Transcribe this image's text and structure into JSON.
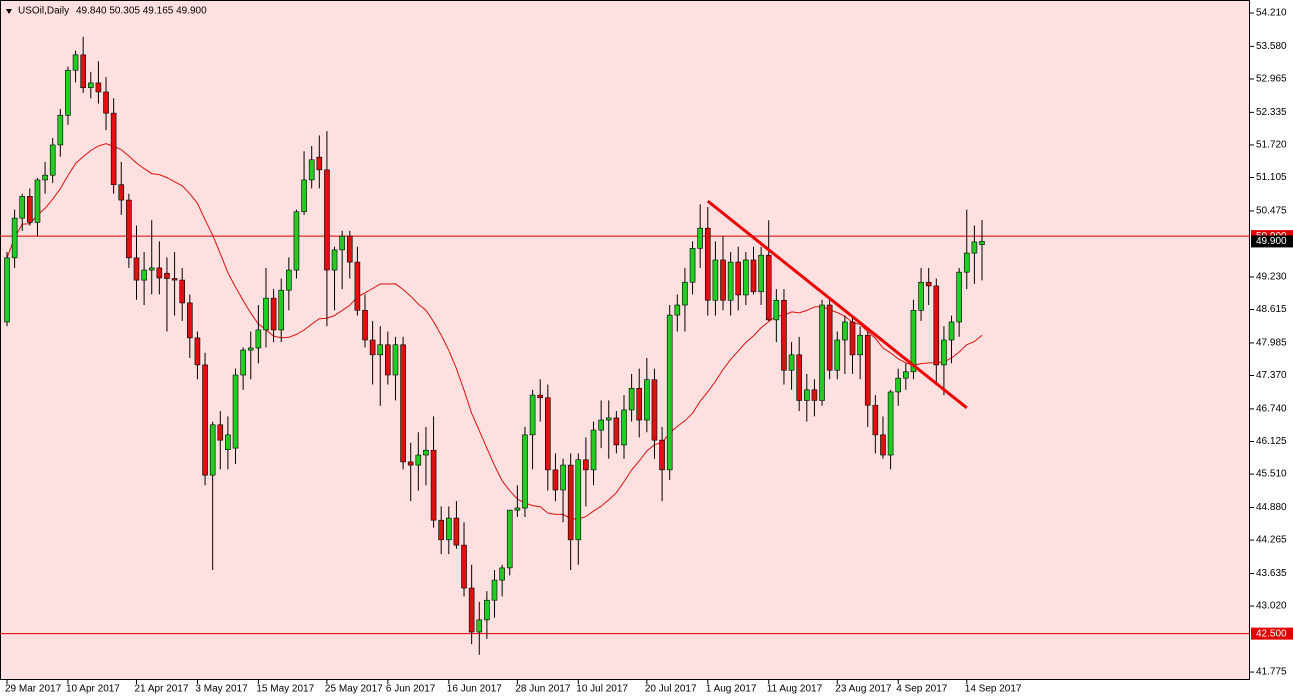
{
  "chart_data": {
    "type": "candlestick",
    "title": "USOil,Daily",
    "ohlc_text": "49.840 50.305 49.165 49.900",
    "categories": [
      "29 Mar 2017",
      null,
      null,
      null,
      null,
      null,
      null,
      null,
      "10 Apr 2017",
      null,
      null,
      null,
      null,
      null,
      null,
      null,
      null,
      "21 Apr 2017",
      null,
      null,
      null,
      null,
      null,
      null,
      null,
      "3 May 2017",
      null,
      null,
      null,
      null,
      null,
      null,
      null,
      "15 May 2017",
      null,
      null,
      null,
      null,
      null,
      null,
      null,
      null,
      "25 May 2017",
      null,
      null,
      null,
      null,
      null,
      null,
      null,
      "6 Jun 2017",
      null,
      null,
      null,
      null,
      null,
      null,
      null,
      "16 Jun 2017",
      null,
      null,
      null,
      null,
      null,
      null,
      null,
      null,
      "28 Jun 2017",
      null,
      null,
      null,
      null,
      null,
      null,
      null,
      "10 Jul 2017",
      null,
      null,
      null,
      null,
      null,
      null,
      null,
      null,
      "20 Jul 2017",
      null,
      null,
      null,
      null,
      null,
      null,
      null,
      "1 Aug 2017",
      null,
      null,
      null,
      null,
      null,
      null,
      null,
      "11 Aug 2017",
      null,
      null,
      null,
      null,
      null,
      null,
      null,
      null,
      "23 Aug 2017",
      null,
      null,
      null,
      null,
      null,
      null,
      null,
      "4 Sep 2017",
      null,
      null,
      null,
      null,
      null,
      null,
      null,
      null,
      "14 Sep 2017",
      null,
      null
    ],
    "open": [
      48.38,
      49.59,
      50.34,
      50.75,
      50.26,
      51.06,
      51.15,
      51.72,
      52.28,
      53.13,
      53.42,
      52.8,
      52.89,
      52.72,
      52.32,
      50.97,
      50.68,
      49.59,
      49.17,
      49.36,
      49.4,
      49.3,
      49.2,
      49.17,
      48.74,
      48.08,
      47.57,
      45.49,
      46.44,
      45.97,
      46.0,
      47.38,
      47.85,
      47.89,
      48.23,
      48.83,
      48.23,
      48.98,
      49.36,
      50.46,
      51.06,
      51.49,
      51.25,
      49.36,
      49.74,
      50.0,
      49.51,
      48.6,
      48.04,
      47.76,
      47.95,
      47.38,
      47.95,
      45.74,
      45.68,
      45.87,
      45.96,
      44.64,
      44.27,
      44.68,
      44.17,
      43.36,
      42.53,
      42.76,
      43.13,
      43.51,
      43.74,
      44.83,
      44.87,
      46.25,
      47.0,
      46.95,
      45.59,
      45.21,
      45.68,
      44.27,
      45.78,
      45.59,
      46.34,
      46.53,
      46.57,
      46.06,
      46.72,
      47.13,
      46.53,
      47.29,
      46.15,
      45.59,
      48.51,
      48.7,
      49.13,
      49.77,
      50.15,
      48.79,
      49.55,
      48.79,
      49.51,
      48.89,
      49.55,
      48.95,
      49.64,
      48.42,
      48.79,
      47.47,
      47.76,
      46.9,
      47.1,
      46.9,
      48.7,
      47.47,
      48.04,
      48.38,
      47.76,
      48.13,
      46.81,
      46.25,
      45.87,
      47.06,
      47.32,
      47.44,
      48.6,
      49.13,
      49.06,
      47.57,
      48.04,
      48.38,
      49.32,
      49.68,
      49.84
    ],
    "high": [
      49.7,
      50.5,
      50.8,
      50.9,
      51.1,
      51.4,
      51.85,
      52.4,
      53.2,
      53.5,
      53.76,
      53.1,
      53.3,
      53.0,
      52.6,
      51.4,
      50.8,
      50.2,
      49.7,
      50.3,
      49.9,
      49.6,
      49.7,
      49.4,
      48.9,
      48.2,
      47.8,
      46.5,
      46.7,
      46.6,
      47.5,
      47.9,
      48.2,
      48.7,
      49.4,
      49.0,
      49.2,
      49.6,
      50.5,
      51.6,
      51.7,
      51.9,
      51.98,
      49.8,
      50.1,
      50.1,
      49.8,
      48.9,
      48.4,
      48.3,
      48.2,
      48.1,
      48.1,
      46.1,
      46.3,
      46.4,
      46.6,
      44.9,
      44.9,
      45.0,
      44.6,
      43.8,
      43.1,
      43.3,
      43.7,
      43.8,
      44.8,
      45.3,
      46.4,
      47.1,
      47.3,
      47.2,
      45.9,
      45.8,
      45.9,
      45.9,
      46.2,
      46.5,
      46.9,
      46.9,
      46.7,
      47.0,
      47.4,
      47.5,
      47.7,
      47.5,
      46.4,
      48.7,
      48.9,
      49.4,
      49.9,
      50.6,
      50.55,
      49.9,
      50.0,
      49.7,
      49.8,
      49.7,
      49.8,
      49.8,
      50.3,
      49.0,
      49.0,
      48.0,
      48.1,
      47.4,
      47.3,
      48.8,
      48.8,
      48.2,
      48.5,
      48.5,
      48.3,
      48.2,
      47.0,
      46.6,
      47.1,
      47.5,
      47.6,
      48.8,
      49.4,
      49.4,
      49.2,
      48.3,
      48.5,
      49.4,
      50.5,
      50.2,
      50.305
    ],
    "low": [
      48.3,
      49.4,
      50.1,
      50.2,
      50.0,
      50.8,
      51.0,
      51.5,
      52.1,
      52.9,
      52.7,
      52.6,
      52.5,
      52.0,
      50.8,
      50.4,
      49.4,
      48.8,
      48.7,
      48.9,
      48.9,
      48.2,
      48.5,
      48.4,
      47.7,
      47.3,
      45.3,
      43.7,
      45.6,
      45.6,
      45.7,
      47.1,
      47.3,
      47.6,
      47.9,
      48.0,
      48.0,
      48.6,
      49.2,
      50.4,
      50.9,
      50.9,
      48.3,
      48.6,
      49.0,
      49.2,
      48.5,
      47.9,
      47.2,
      46.8,
      47.2,
      46.9,
      45.6,
      45.0,
      45.2,
      45.3,
      44.5,
      44.0,
      44.0,
      44.1,
      43.2,
      42.3,
      42.1,
      42.4,
      42.8,
      43.2,
      43.6,
      44.7,
      44.7,
      45.6,
      46.5,
      45.2,
      45.0,
      44.6,
      43.7,
      43.8,
      44.9,
      45.3,
      46.0,
      45.8,
      45.9,
      45.8,
      46.5,
      46.2,
      46.3,
      45.8,
      45.0,
      45.4,
      48.2,
      48.2,
      48.9,
      49.4,
      48.5,
      48.5,
      48.6,
      48.5,
      48.6,
      48.7,
      48.9,
      48.7,
      48.4,
      48.0,
      47.2,
      47.1,
      46.7,
      46.5,
      46.6,
      46.8,
      47.3,
      47.3,
      47.4,
      47.4,
      47.3,
      46.4,
      45.9,
      45.8,
      45.6,
      46.8,
      47.1,
      47.3,
      48.4,
      48.7,
      47.2,
      47.0,
      47.6,
      48.1,
      49.0,
      49.1,
      49.165
    ],
    "close": [
      49.59,
      50.34,
      50.75,
      50.26,
      51.06,
      51.15,
      51.72,
      52.28,
      53.13,
      53.42,
      52.8,
      52.89,
      52.72,
      52.32,
      50.97,
      50.68,
      49.59,
      49.17,
      49.36,
      49.4,
      49.21,
      49.2,
      49.17,
      48.74,
      48.08,
      47.57,
      45.49,
      46.44,
      46.15,
      46.25,
      47.38,
      47.85,
      47.89,
      48.23,
      48.83,
      48.23,
      48.98,
      49.36,
      50.46,
      51.06,
      51.44,
      51.25,
      49.36,
      49.74,
      50.0,
      49.51,
      48.6,
      48.04,
      47.76,
      47.95,
      47.38,
      47.95,
      45.74,
      45.68,
      45.87,
      45.96,
      44.64,
      44.27,
      44.68,
      44.17,
      43.36,
      42.53,
      42.76,
      43.13,
      43.51,
      43.74,
      44.83,
      44.87,
      46.25,
      47.0,
      46.95,
      45.59,
      45.21,
      45.68,
      44.27,
      45.78,
      45.59,
      46.34,
      46.53,
      46.57,
      46.06,
      46.72,
      47.13,
      46.53,
      47.29,
      46.15,
      45.59,
      48.51,
      48.7,
      49.13,
      49.77,
      50.15,
      48.79,
      49.55,
      48.79,
      49.51,
      48.89,
      49.55,
      48.95,
      49.64,
      48.42,
      48.79,
      47.47,
      47.76,
      46.9,
      47.1,
      46.9,
      48.7,
      47.47,
      48.04,
      48.38,
      47.76,
      48.13,
      46.81,
      46.25,
      45.87,
      47.06,
      47.32,
      47.44,
      48.6,
      49.13,
      49.06,
      47.57,
      48.04,
      48.38,
      49.32,
      49.68,
      49.89,
      49.9
    ],
    "up_color": "#22cc22",
    "down_color": "#dd1111",
    "ma_color": "#e01010",
    "ylim": [
      41.625,
      54.455
    ],
    "yticks": [
      {
        "value": 54.21,
        "label": "54.210"
      },
      {
        "value": 53.58,
        "label": "53.580"
      },
      {
        "value": 52.965,
        "label": "52.965"
      },
      {
        "value": 52.335,
        "label": "52.335"
      },
      {
        "value": 51.72,
        "label": "51.720"
      },
      {
        "value": 51.105,
        "label": "51.105"
      },
      {
        "value": 50.475,
        "label": "50.475"
      },
      {
        "value": 49.23,
        "label": "49.230"
      },
      {
        "value": 48.615,
        "label": "48.615"
      },
      {
        "value": 47.985,
        "label": "47.985"
      },
      {
        "value": 47.37,
        "label": "47.370"
      },
      {
        "value": 46.74,
        "label": "46.740"
      },
      {
        "value": 46.125,
        "label": "46.125"
      },
      {
        "value": 45.51,
        "label": "45.510"
      },
      {
        "value": 44.88,
        "label": "44.880"
      },
      {
        "value": 44.265,
        "label": "44.265"
      },
      {
        "value": 43.635,
        "label": "43.635"
      },
      {
        "value": 43.02,
        "label": "43.020"
      },
      {
        "value": 41.775,
        "label": "41.775"
      }
    ],
    "levels": [
      {
        "value": 50,
        "label": "50.000"
      },
      {
        "value": 42.5,
        "label": "42.500"
      }
    ],
    "last_price": {
      "value": 49.9,
      "label": "49.900"
    },
    "trendline": {
      "x": [
        92,
        126
      ],
      "y": [
        50.66,
        46.76
      ]
    }
  }
}
